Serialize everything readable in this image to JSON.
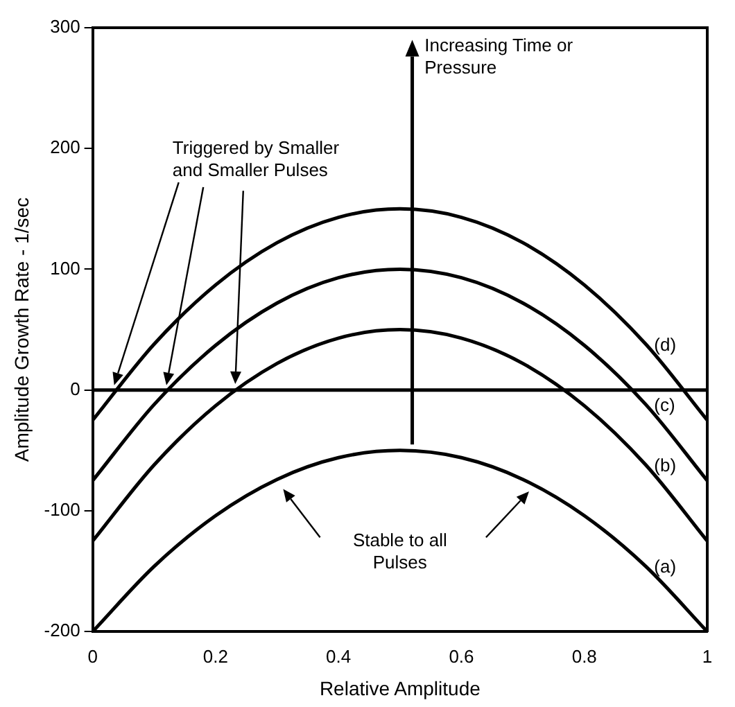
{
  "chart_data": {
    "type": "line",
    "xlabel": "Relative Amplitude",
    "ylabel": "Amplitude Growth Rate - 1/sec",
    "x": [
      0,
      0.1,
      0.2,
      0.3,
      0.4,
      0.5,
      0.6,
      0.7,
      0.8,
      0.9,
      1
    ],
    "series": [
      {
        "name": "(a)",
        "color": "#000000",
        "values": [
          -200,
          -146,
          -104,
          -74,
          -56,
          -50,
          -56,
          -74,
          -104,
          -146,
          -200
        ]
      },
      {
        "name": "(b)",
        "color": "#000000",
        "values": [
          -125,
          -62,
          -13,
          22,
          43,
          50,
          43,
          22,
          -13,
          -62,
          -125
        ]
      },
      {
        "name": "(c)",
        "color": "#000000",
        "values": [
          -75,
          -12,
          37,
          72,
          93,
          100,
          93,
          72,
          37,
          -12,
          -75
        ]
      },
      {
        "name": "(d)",
        "color": "#000000",
        "values": [
          -25,
          38,
          87,
          122,
          143,
          150,
          143,
          122,
          87,
          38,
          -25
        ]
      }
    ],
    "xlim": [
      0,
      1
    ],
    "xticks": [
      0,
      0.2,
      0.4,
      0.6,
      0.8,
      1
    ],
    "ylim": [
      -200,
      300
    ],
    "yticks": [
      -200,
      -100,
      0,
      100,
      200,
      300
    ],
    "ref_lines": [
      {
        "axis": "y",
        "value": 0,
        "color": "#000000"
      }
    ],
    "annotations": [
      "Increasing Time or Pressure",
      "Triggered by Smaller and Smaller Pulses",
      "Stable to all Pulses"
    ],
    "grid": false,
    "legend": false,
    "marker": "none",
    "line_style": "solid"
  }
}
